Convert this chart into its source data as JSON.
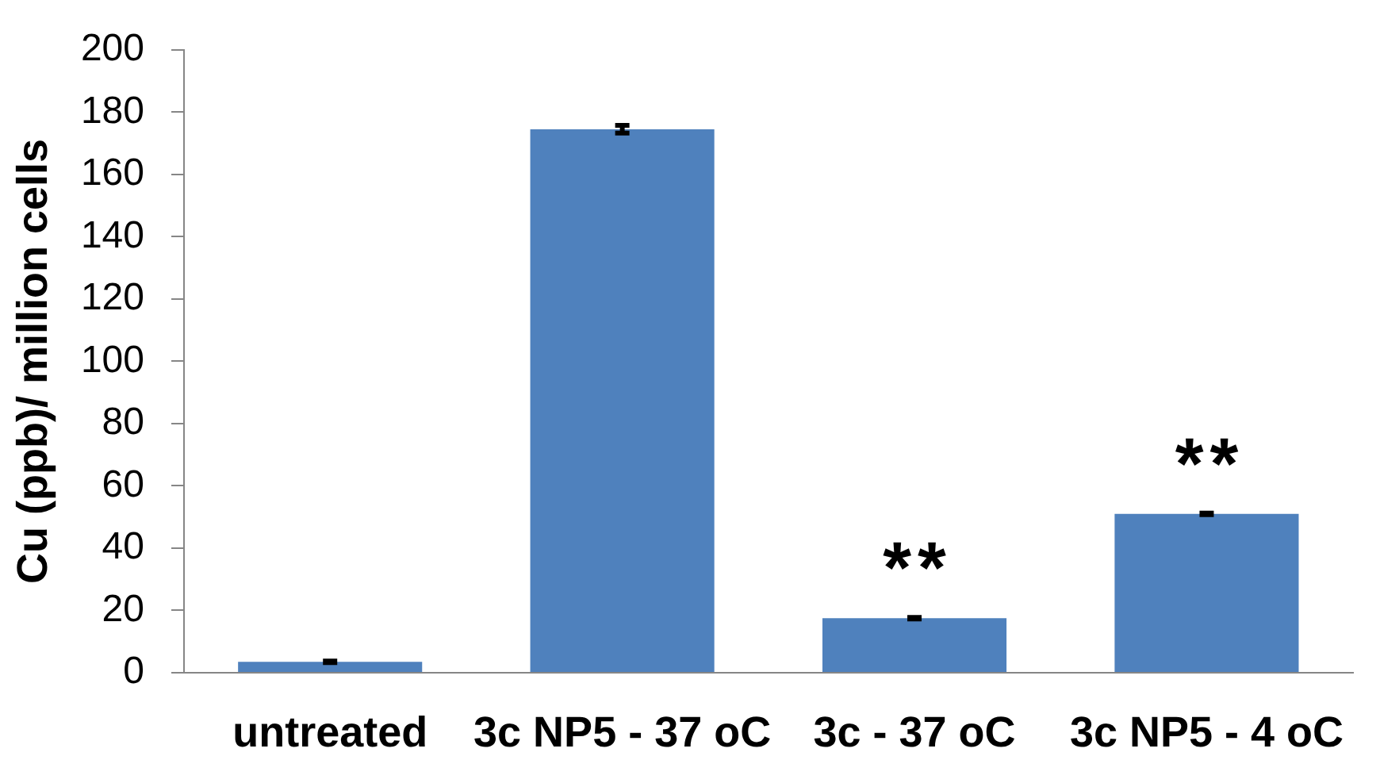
{
  "chart_data": {
    "type": "bar",
    "ylabel": "Cu (ppb)/ million cells",
    "categories": [
      "untreated",
      "3c NP5 - 37 oC",
      "3c - 37 oC",
      "3c NP5 - 4 oC"
    ],
    "values": [
      3.5,
      174.5,
      17.5,
      51
    ],
    "errors": [
      1,
      2,
      1,
      1
    ],
    "color": "#4f81bd",
    "ylim": [
      0,
      200
    ],
    "yticks": [
      0,
      20,
      40,
      60,
      80,
      100,
      120,
      140,
      160,
      180,
      200
    ],
    "grid": false,
    "legend": false,
    "annotations": [
      {
        "text": "**",
        "x": "3c - 37 oC",
        "y": 17.5
      },
      {
        "text": "**",
        "x": "3c NP5 - 4 oC",
        "y": 51
      }
    ]
  }
}
